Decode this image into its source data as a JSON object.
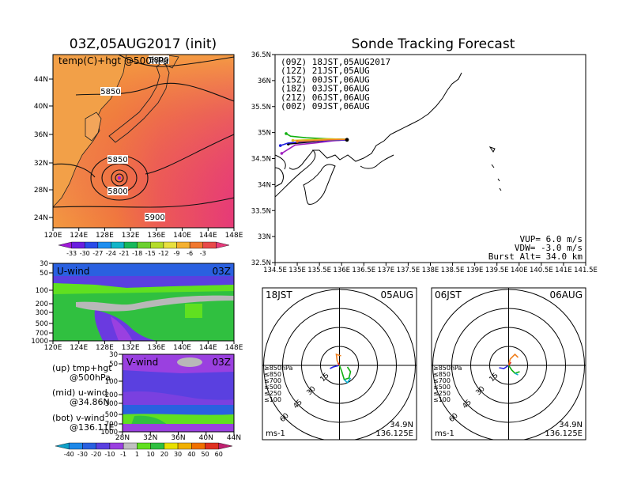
{
  "left_title": "03Z,05AUG2017 (init)",
  "right_title": "Sonde Tracking Forecast",
  "colors": {
    "temp_scale": [
      "#a01ad8",
      "#6a1ee0",
      "#2a4be8",
      "#1f8ef0",
      "#12b4c8",
      "#16b85a",
      "#6bd030",
      "#b4dc2a",
      "#e8e040",
      "#f4b030",
      "#f07830",
      "#e84a4a",
      "#e83a7a"
    ],
    "wind_scale": [
      "#0fa0c8",
      "#1e88e8",
      "#2a60e0",
      "#5a40e0",
      "#9a40e0",
      "#c0c0c0",
      "#60e020",
      "#30c040",
      "#e8e000",
      "#f0b000",
      "#f07000",
      "#e03020",
      "#c02070"
    ]
  },
  "map_panel": {
    "label": "temp(C)+hgt @500hPa",
    "lat_ticks": [
      "44N",
      "40N",
      "36N",
      "32N",
      "28N",
      "24N"
    ],
    "lon_ticks": [
      "120E",
      "124E",
      "128E",
      "132E",
      "136E",
      "140E",
      "144E",
      "148E"
    ],
    "contour_labels": [
      "5800",
      "5850",
      "5850",
      "5800",
      "5900"
    ],
    "colorbar_labels": [
      "-33",
      "-30",
      "-27",
      "-24",
      "-21",
      "-18",
      "-15",
      "-12",
      "-9",
      "-6",
      "-3"
    ]
  },
  "u_panel": {
    "label": "U-wind",
    "time": "03Z",
    "p_ticks": [
      "30",
      "50",
      "100",
      "200",
      "300",
      "500",
      "700",
      "1000"
    ],
    "lon_ticks": [
      "120E",
      "124E",
      "128E",
      "132E",
      "136E",
      "140E",
      "144E",
      "148E"
    ]
  },
  "v_panel": {
    "label": "V-wind",
    "time": "03Z",
    "p_ticks": [
      "30",
      "50",
      "100",
      "200",
      "300",
      "500",
      "700",
      "1000"
    ],
    "lat_ticks": [
      "28N",
      "32N",
      "36N",
      "40N",
      "44N"
    ]
  },
  "legend_notes": [
    {
      "line1": "(up) tmp+hgt",
      "line2": "@500hPa"
    },
    {
      "line1": "(mid) u-wind",
      "line2": "@34.86N"
    },
    {
      "line1": "(bot) v-wind",
      "line2": "@136.11E"
    }
  ],
  "wind_colorbar_labels": [
    "-40",
    "-30",
    "-20",
    "-10",
    "-1",
    "1",
    "10",
    "20",
    "30",
    "40",
    "50",
    "60"
  ],
  "track_panel": {
    "lat_ticks": [
      "36.5N",
      "36N",
      "35.5N",
      "35N",
      "34.5N",
      "34N",
      "33.5N",
      "33N",
      "32.5N"
    ],
    "lon_ticks": [
      "134.5E",
      "135E",
      "135.5E",
      "136E",
      "136.5E",
      "137E",
      "137.5E",
      "138E",
      "138.5E",
      "139E",
      "139.5E",
      "140E",
      "140.5E",
      "141E",
      "141.5E"
    ],
    "legend": [
      {
        "label": "(09Z)  18JST,05AUG2017",
        "color": "#000000"
      },
      {
        "label": "(12Z)  21JST,05AUG",
        "color": "#a020c0"
      },
      {
        "label": "(15Z)  00JST,06AUG",
        "color": "#2020e0"
      },
      {
        "label": "(18Z)  03JST,06AUG",
        "color": "#10b010"
      },
      {
        "label": "(21Z)  06JST,06AUG",
        "color": "#e0c020"
      },
      {
        "label": "(00Z)  09JST,06AUG",
        "color": "#f08020"
      }
    ],
    "params": [
      "VUP=  6.0 m/s",
      "VDW= -3.0 m/s",
      "Burst Alt=  34.0 km"
    ]
  },
  "polar_panels": [
    {
      "left": "18JST",
      "right": "05AUG",
      "lat": "34.9N",
      "lon": "136.125E",
      "unit": "ms-1",
      "ring_labels": [
        "15",
        "30",
        "45",
        "60"
      ],
      "levels": [
        {
          "label": "≥850hPa",
          "color": "#e03020"
        },
        {
          "label": "≤850",
          "color": "#f08020"
        },
        {
          "label": "≤700",
          "color": "#e0c020"
        },
        {
          "label": "≤500",
          "color": "#10b010"
        },
        {
          "label": "≤250",
          "color": "#10b0d0"
        },
        {
          "label": "≤100",
          "color": "#2020e0"
        }
      ]
    },
    {
      "left": "06JST",
      "right": "06AUG",
      "lat": "34.9N",
      "lon": "136.125E",
      "unit": "ms-1",
      "ring_labels": [
        "15",
        "30",
        "45",
        "60"
      ],
      "levels": [
        {
          "label": "≥850hPa",
          "color": "#e03020"
        },
        {
          "label": "≤850",
          "color": "#f08020"
        },
        {
          "label": "≤700",
          "color": "#e0c020"
        },
        {
          "label": "≤500",
          "color": "#10b010"
        },
        {
          "label": "≤250",
          "color": "#10b0d0"
        },
        {
          "label": "≤100",
          "color": "#2020e0"
        }
      ]
    }
  ],
  "chart_data": [
    {
      "type": "heatmap",
      "title": "03Z,05AUG2017 (init)",
      "variable": "temp(C)+hgt @500hPa",
      "x_ticks": [
        "120E",
        "124E",
        "128E",
        "132E",
        "136E",
        "140E",
        "144E",
        "148E"
      ],
      "y_ticks": [
        "44N",
        "40N",
        "36N",
        "32N",
        "28N",
        "24N"
      ],
      "contour_labels": [
        "5800",
        "5850",
        "5850",
        "5800",
        "5900"
      ],
      "colorbar": [
        "-33",
        "-30",
        "-27",
        "-24",
        "-21",
        "-18",
        "-15",
        "-12",
        "-9",
        "-6",
        "-3"
      ]
    },
    {
      "type": "heatmap",
      "title": "U-wind",
      "x_ticks": [
        "120E",
        "124E",
        "128E",
        "132E",
        "136E",
        "140E",
        "144E",
        "148E"
      ],
      "y_ticks": [
        "30",
        "50",
        "100",
        "200",
        "300",
        "500",
        "700",
        "1000"
      ]
    },
    {
      "type": "heatmap",
      "title": "V-wind",
      "x_ticks": [
        "28N",
        "32N",
        "36N",
        "40N",
        "44N"
      ],
      "y_ticks": [
        "30",
        "50",
        "100",
        "200",
        "300",
        "500",
        "700",
        "1000"
      ],
      "colorbar": [
        "-40",
        "-30",
        "-20",
        "-10",
        "-1",
        "1",
        "10",
        "20",
        "30",
        "40",
        "50",
        "60"
      ]
    },
    {
      "type": "line",
      "title": "Sonde Tracking Forecast",
      "xlim": [
        134.5,
        141.5
      ],
      "ylim": [
        32.5,
        36.5
      ],
      "series": [
        {
          "name": "(09Z)  18JST,05AUG2017",
          "x": [
            136.12,
            135.9,
            135.6,
            135.3,
            135.05,
            134.8
          ],
          "y": [
            34.86,
            34.85,
            34.84,
            34.82,
            34.8,
            34.78
          ]
        },
        {
          "name": "(12Z)  21JST,05AUG",
          "x": [
            136.12,
            135.8,
            135.4,
            134.95,
            134.65
          ],
          "y": [
            34.86,
            34.84,
            34.8,
            34.76,
            34.6
          ]
        },
        {
          "name": "(15Z)  00JST,06AUG",
          "x": [
            136.12,
            135.7,
            135.2,
            134.8,
            134.62
          ],
          "y": [
            34.86,
            34.85,
            34.83,
            34.8,
            34.75
          ]
        },
        {
          "name": "(18Z)  03JST,06AUG",
          "x": [
            136.12,
            135.7,
            135.2,
            134.85,
            134.75
          ],
          "y": [
            34.87,
            34.88,
            34.9,
            34.93,
            34.98
          ]
        },
        {
          "name": "(21Z)  06JST,06AUG",
          "x": [
            136.12,
            135.7,
            135.2,
            134.9
          ],
          "y": [
            34.87,
            34.88,
            34.86,
            34.85
          ]
        },
        {
          "name": "(00Z)  09JST,06AUG",
          "x": [
            136.12,
            135.7,
            135.3,
            135.0
          ],
          "y": [
            34.87,
            34.86,
            34.84,
            34.83
          ]
        }
      ],
      "params": [
        "VUP=  6.0 m/s",
        "VDW= -3.0 m/s",
        "Burst Alt=  34.0 km"
      ]
    }
  ]
}
